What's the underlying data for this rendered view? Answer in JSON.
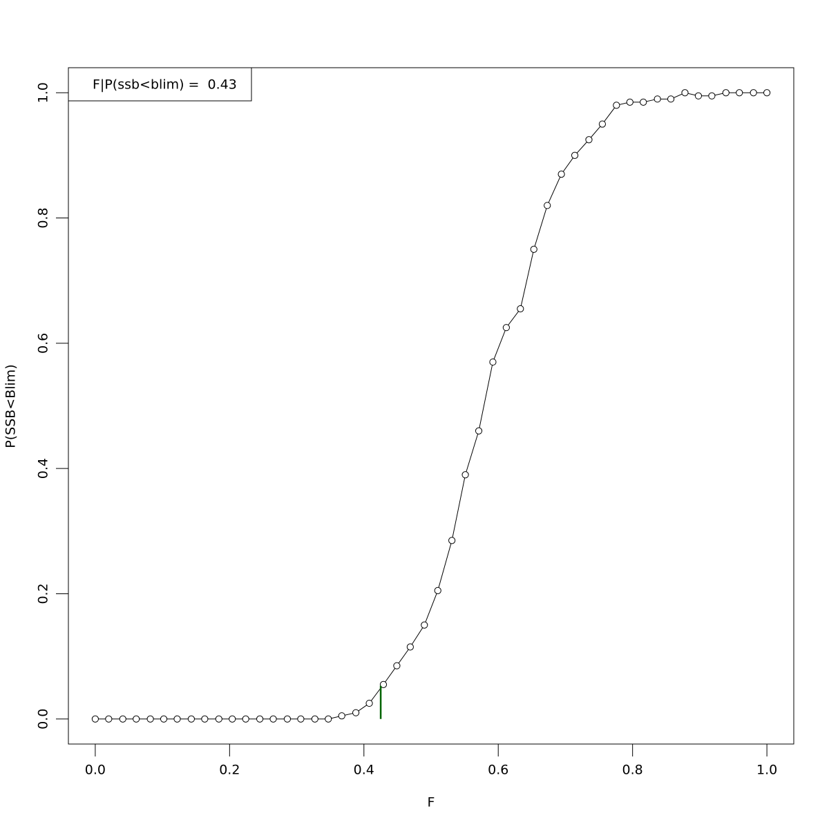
{
  "chart_data": {
    "type": "line",
    "x_label": "F",
    "y_label": "P(SSB<Blim)",
    "legend_text": "F|P(ssb<blim) =  0.43",
    "legend_position": "top-left",
    "x": [
      0,
      0.02,
      0.041,
      0.061,
      0.082,
      0.102,
      0.122,
      0.143,
      0.163,
      0.184,
      0.204,
      0.224,
      0.245,
      0.265,
      0.286,
      0.306,
      0.327,
      0.347,
      0.367,
      0.388,
      0.408,
      0.429,
      0.449,
      0.469,
      0.49,
      0.51,
      0.531,
      0.551,
      0.571,
      0.592,
      0.612,
      0.633,
      0.653,
      0.673,
      0.694,
      0.714,
      0.735,
      0.755,
      0.776,
      0.796,
      0.816,
      0.837,
      0.857,
      0.878,
      0.898,
      0.918,
      0.939,
      0.959,
      0.98,
      1.0
    ],
    "series": [
      {
        "name": "P(SSB<Blim)",
        "color": "#000000",
        "values": [
          0,
          0,
          0,
          0,
          0,
          0,
          0,
          0,
          0,
          0,
          0,
          0,
          0,
          0,
          0,
          0,
          0,
          0,
          0.005,
          0.01,
          0.025,
          0.055,
          0.085,
          0.115,
          0.15,
          0.205,
          0.285,
          0.39,
          0.46,
          0.57,
          0.625,
          0.655,
          0.75,
          0.82,
          0.87,
          0.9,
          0.925,
          0.95,
          0.98,
          0.985,
          0.985,
          0.99,
          0.99,
          1.0,
          0.995,
          0.995,
          1.0,
          1.0,
          1.0,
          1.0
        ]
      }
    ],
    "marker": {
      "x": 0.425,
      "y": 0.053,
      "color": "#006400"
    },
    "xlim": [
      -0.04,
      1.04
    ],
    "ylim": [
      -0.04,
      1.04
    ],
    "xticks": [
      {
        "value": 0,
        "label": "0.0"
      },
      0.2,
      0.4,
      0.6,
      0.8,
      {
        "value": 1,
        "label": "1.0"
      }
    ],
    "yticks": [
      {
        "value": 0,
        "label": "0.0"
      },
      0.2,
      0.4,
      0.6,
      0.8,
      {
        "value": 1,
        "label": "1.0"
      }
    ]
  }
}
